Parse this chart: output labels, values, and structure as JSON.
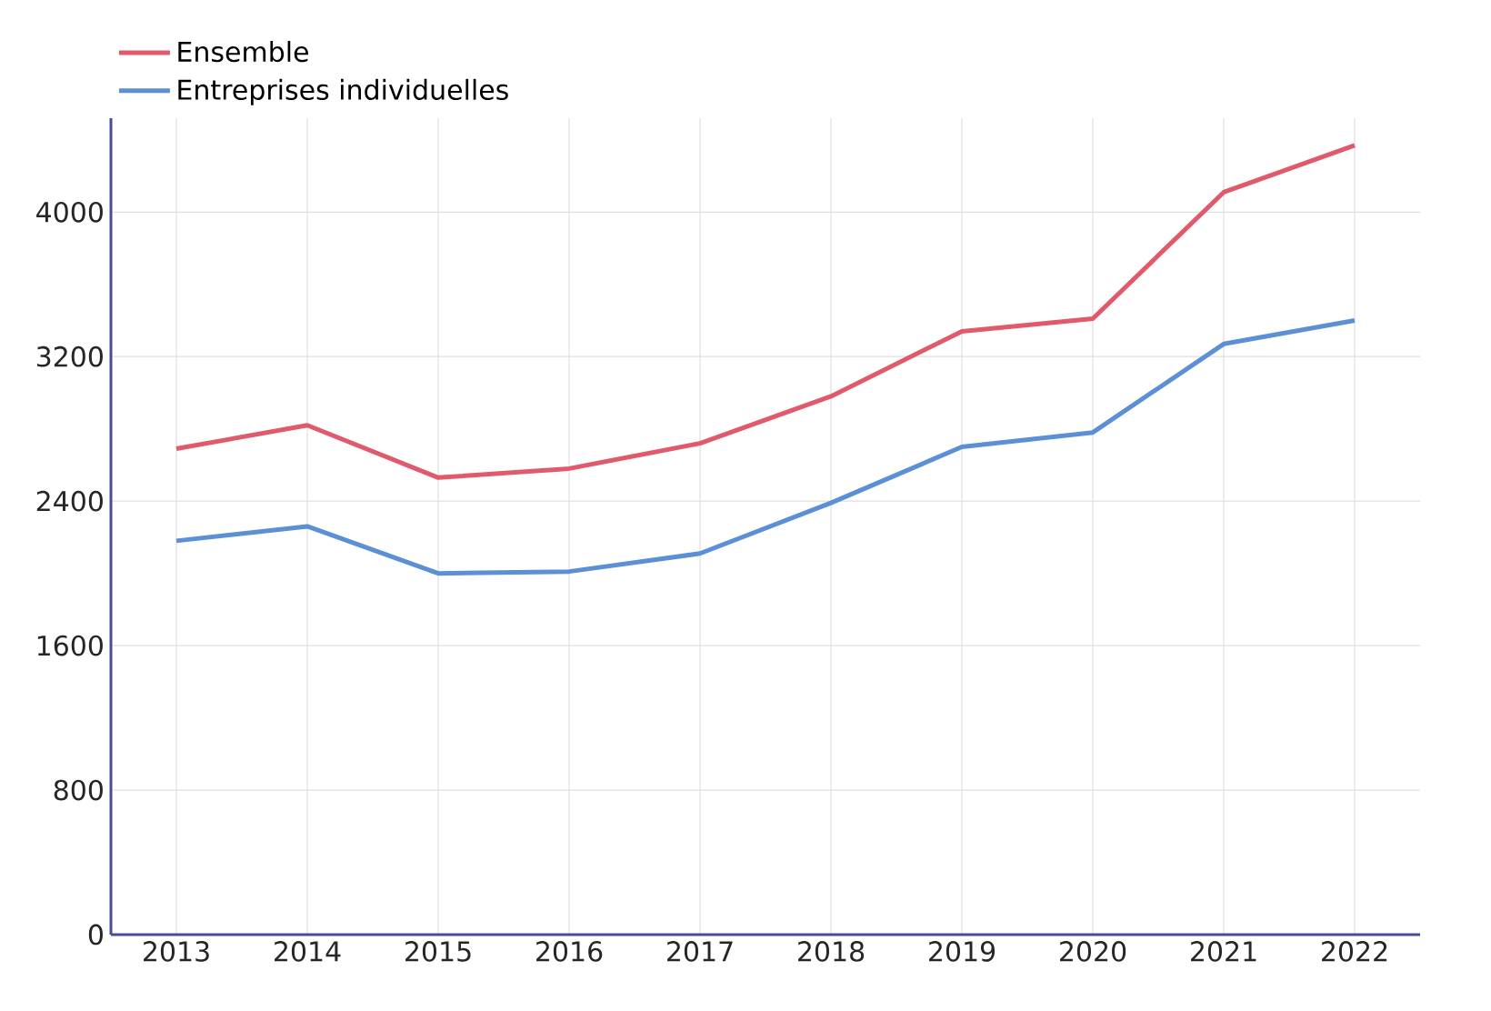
{
  "chart_data": {
    "type": "line",
    "categories": [
      "2013",
      "2014",
      "2015",
      "2016",
      "2017",
      "2018",
      "2019",
      "2020",
      "2021",
      "2022"
    ],
    "series": [
      {
        "name": "Ensemble",
        "color": "#e05a6c",
        "values": [
          2690,
          2820,
          2530,
          2580,
          2720,
          2980,
          3340,
          3410,
          4110,
          4370
        ]
      },
      {
        "name": "Entreprises individuelles",
        "color": "#5b8fd6",
        "values": [
          2180,
          2260,
          2000,
          2010,
          2110,
          2390,
          2700,
          2780,
          3270,
          3400
        ]
      }
    ],
    "ylim": [
      0,
      4520
    ],
    "yticks": [
      0,
      800,
      1600,
      2400,
      3200,
      4000
    ],
    "grid": true,
    "legend": "top left",
    "marker": "none",
    "line_style": "solid"
  }
}
